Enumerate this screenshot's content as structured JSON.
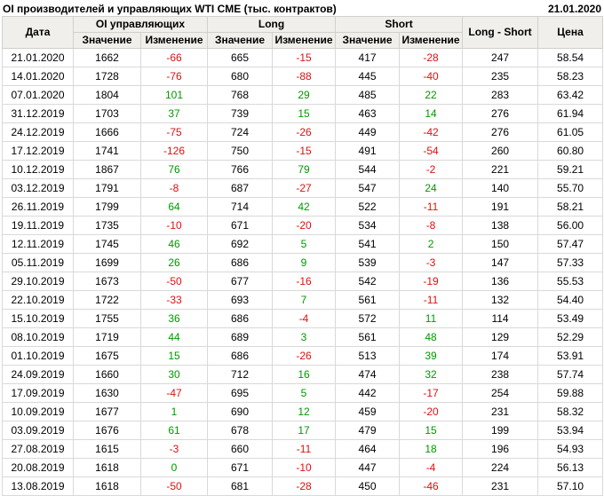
{
  "title": "OI производителей и управляющих WTI CME (тыс. контрактов)",
  "report_date": "21.01.2020",
  "colors": {
    "positive_change": "#009900",
    "negative_change": "#dd1111",
    "header_bg": "#f0efeb",
    "header_border": "#d2d0ca",
    "body_border": "#d9d9d9",
    "text": "#000000"
  },
  "chart_data": {
    "type": "table",
    "title": "OI производителей и управляющих WTI CME (тыс. контрактов)",
    "as_of_date": "21.01.2020",
    "column_groups": [
      {
        "label": "Дата"
      },
      {
        "label": "OI управляющих"
      },
      {
        "label": "Long"
      },
      {
        "label": "Short"
      },
      {
        "label": "Long - Short"
      },
      {
        "label": "Цена"
      }
    ],
    "sub_headers": {
      "value": "Значение",
      "change": "Изменение"
    },
    "rows": [
      {
        "date": "21.01.2020",
        "oi": 1662,
        "oi_chg": -66,
        "long": 665,
        "long_chg": -15,
        "short": 417,
        "short_chg": -28,
        "long_short": 247,
        "price": "58.54"
      },
      {
        "date": "14.01.2020",
        "oi": 1728,
        "oi_chg": -76,
        "long": 680,
        "long_chg": -88,
        "short": 445,
        "short_chg": -40,
        "long_short": 235,
        "price": "58.23"
      },
      {
        "date": "07.01.2020",
        "oi": 1804,
        "oi_chg": 101,
        "long": 768,
        "long_chg": 29,
        "short": 485,
        "short_chg": 22,
        "long_short": 283,
        "price": "63.42"
      },
      {
        "date": "31.12.2019",
        "oi": 1703,
        "oi_chg": 37,
        "long": 739,
        "long_chg": 15,
        "short": 463,
        "short_chg": 14,
        "long_short": 276,
        "price": "61.94"
      },
      {
        "date": "24.12.2019",
        "oi": 1666,
        "oi_chg": -75,
        "long": 724,
        "long_chg": -26,
        "short": 449,
        "short_chg": -42,
        "long_short": 276,
        "price": "61.05"
      },
      {
        "date": "17.12.2019",
        "oi": 1741,
        "oi_chg": -126,
        "long": 750,
        "long_chg": -15,
        "short": 491,
        "short_chg": -54,
        "long_short": 260,
        "price": "60.80"
      },
      {
        "date": "10.12.2019",
        "oi": 1867,
        "oi_chg": 76,
        "long": 766,
        "long_chg": 79,
        "short": 544,
        "short_chg": -2,
        "long_short": 221,
        "price": "59.21"
      },
      {
        "date": "03.12.2019",
        "oi": 1791,
        "oi_chg": -8,
        "long": 687,
        "long_chg": -27,
        "short": 547,
        "short_chg": 24,
        "long_short": 140,
        "price": "55.70"
      },
      {
        "date": "26.11.2019",
        "oi": 1799,
        "oi_chg": 64,
        "long": 714,
        "long_chg": 42,
        "short": 522,
        "short_chg": -11,
        "long_short": 191,
        "price": "58.21"
      },
      {
        "date": "19.11.2019",
        "oi": 1735,
        "oi_chg": -10,
        "long": 671,
        "long_chg": -20,
        "short": 534,
        "short_chg": -8,
        "long_short": 138,
        "price": "56.00"
      },
      {
        "date": "12.11.2019",
        "oi": 1745,
        "oi_chg": 46,
        "long": 692,
        "long_chg": 5,
        "short": 541,
        "short_chg": 2,
        "long_short": 150,
        "price": "57.47"
      },
      {
        "date": "05.11.2019",
        "oi": 1699,
        "oi_chg": 26,
        "long": 686,
        "long_chg": 9,
        "short": 539,
        "short_chg": -3,
        "long_short": 147,
        "price": "57.33"
      },
      {
        "date": "29.10.2019",
        "oi": 1673,
        "oi_chg": -50,
        "long": 677,
        "long_chg": -16,
        "short": 542,
        "short_chg": -19,
        "long_short": 136,
        "price": "55.53"
      },
      {
        "date": "22.10.2019",
        "oi": 1722,
        "oi_chg": -33,
        "long": 693,
        "long_chg": 7,
        "short": 561,
        "short_chg": -11,
        "long_short": 132,
        "price": "54.40"
      },
      {
        "date": "15.10.2019",
        "oi": 1755,
        "oi_chg": 36,
        "long": 686,
        "long_chg": -4,
        "short": 572,
        "short_chg": 11,
        "long_short": 114,
        "price": "53.49"
      },
      {
        "date": "08.10.2019",
        "oi": 1719,
        "oi_chg": 44,
        "long": 689,
        "long_chg": 3,
        "short": 561,
        "short_chg": 48,
        "long_short": 129,
        "price": "52.29"
      },
      {
        "date": "01.10.2019",
        "oi": 1675,
        "oi_chg": 15,
        "long": 686,
        "long_chg": -26,
        "short": 513,
        "short_chg": 39,
        "long_short": 174,
        "price": "53.91"
      },
      {
        "date": "24.09.2019",
        "oi": 1660,
        "oi_chg": 30,
        "long": 712,
        "long_chg": 16,
        "short": 474,
        "short_chg": 32,
        "long_short": 238,
        "price": "57.74"
      },
      {
        "date": "17.09.2019",
        "oi": 1630,
        "oi_chg": -47,
        "long": 695,
        "long_chg": 5,
        "short": 442,
        "short_chg": -17,
        "long_short": 254,
        "price": "59.88"
      },
      {
        "date": "10.09.2019",
        "oi": 1677,
        "oi_chg": 1,
        "long": 690,
        "long_chg": 12,
        "short": 459,
        "short_chg": -20,
        "long_short": 231,
        "price": "58.32"
      },
      {
        "date": "03.09.2019",
        "oi": 1676,
        "oi_chg": 61,
        "long": 678,
        "long_chg": 17,
        "short": 479,
        "short_chg": 15,
        "long_short": 199,
        "price": "53.94"
      },
      {
        "date": "27.08.2019",
        "oi": 1615,
        "oi_chg": -3,
        "long": 660,
        "long_chg": -11,
        "short": 464,
        "short_chg": 18,
        "long_short": 196,
        "price": "54.93"
      },
      {
        "date": "20.08.2019",
        "oi": 1618,
        "oi_chg": 0,
        "long": 671,
        "long_chg": -10,
        "short": 447,
        "short_chg": -4,
        "long_short": 224,
        "price": "56.13"
      },
      {
        "date": "13.08.2019",
        "oi": 1618,
        "oi_chg": -50,
        "long": 681,
        "long_chg": -28,
        "short": 450,
        "short_chg": -46,
        "long_short": 231,
        "price": "57.10"
      }
    ]
  }
}
